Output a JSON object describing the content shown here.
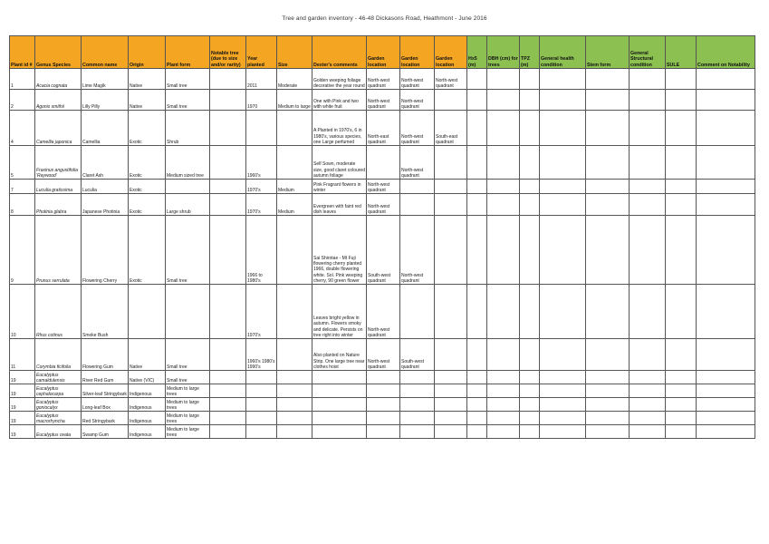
{
  "document": {
    "title": "Tree and garden inventory - 46-48 Dickasons Road, Heathmont - June 2016"
  },
  "table": {
    "headers": [
      "Plant id #",
      "Genus Species",
      "Common name",
      "Origin",
      "Plant form",
      "Notable tree (due to size and/or rarity)",
      "Year planted",
      "Size",
      "Dexter's comments",
      "Garden location",
      "Garden location",
      "Garden location",
      "Hx5 (m)",
      "DBH (cm) for trees",
      "TPZ (m)",
      "General health condition",
      "Stem form",
      "General Structural condition",
      "SULE",
      "Comment on Notability"
    ],
    "header_colors": {
      "orange": "#f4a623",
      "green": "#8cc152"
    },
    "rows": [
      {
        "id": "1",
        "genus": "Acacia cognata",
        "common": "Lime Magik",
        "origin": "Native",
        "form": "Small tree",
        "notable": "",
        "year": "2011",
        "size": "Moderate",
        "comments": "Golden weeping foliage decorative the year round",
        "loc1": "North-west quadrant",
        "loc2": "North-west quadrant",
        "loc3": "North-west quadrant"
      },
      {
        "id": "2",
        "genus": "Agonis smithii",
        "common": "Lilly Pilly",
        "origin": "Native",
        "form": "Small tree",
        "notable": "",
        "year": "1970",
        "size": "Medium to large",
        "comments": "One with Pink and two with white fruit",
        "loc1": "North-west quadrant",
        "loc2": "North-west quadrant",
        "loc3": ""
      },
      {
        "id": "4",
        "genus": "Camellia japonica",
        "common": "Camellia",
        "origin": "Exotic",
        "form": "Shrub",
        "notable": "",
        "year": "",
        "size": "",
        "comments": "A Planted in 1970's, 6 in 1980's, various species, one Large perfumed",
        "loc1": "North-east quadrant",
        "loc2": "North-west quadrant",
        "loc3": "South-east quadrant"
      },
      {
        "id": "5",
        "genus": "Fraxinus angustifolia 'Raywood'",
        "common": "Claret Ash",
        "origin": "Exotic",
        "form": "Medium sized tree",
        "notable": "",
        "year": "1960's",
        "size": "",
        "comments": "Self Sown, moderate size, good claret coloured autumn foliage",
        "loc1": "",
        "loc2": "North-west quadrant",
        "loc3": ""
      },
      {
        "id": "7",
        "genus": "Luculia gratissima",
        "common": "Luculia",
        "origin": "Exotic",
        "form": "",
        "notable": "",
        "year": "1970's",
        "size": "Medium",
        "comments": "Pink Fragrant flowers in winter",
        "loc1": "North-west quadrant",
        "loc2": "",
        "loc3": ""
      },
      {
        "id": "8",
        "genus": "Photinia glabra",
        "common": "Japanese Photinia",
        "origin": "Exotic",
        "form": "Large shrub",
        "notable": "",
        "year": "1970's",
        "size": "Medium",
        "comments": "Evergreen with faint red dish leaves",
        "loc1": "North-west quadrant",
        "loc2": "",
        "loc3": ""
      },
      {
        "id": "9",
        "genus": "Prunus serrulata",
        "common": "Flowering Cherry",
        "origin": "Exotic",
        "form": "Small tree",
        "notable": "",
        "year": "1966 to 1980's",
        "size": "",
        "comments": "Sai Shirotae - Mt Fuji flowering cherry planted 1966, double flowering white. Sol. Pink weeping cherry, 90 green flower",
        "loc1": "South-west quadrant",
        "loc2": "North-west quadrant",
        "loc3": ""
      },
      {
        "id": "10",
        "genus": "Rhus cotinus",
        "common": "Smoke Bush",
        "origin": "",
        "form": "",
        "notable": "",
        "year": "1970's",
        "size": "",
        "comments": "Leaves bright yellow in autumn. Flowers smoky and delicate. Persists on tree right into winter",
        "loc1": "North-west quadrant",
        "loc2": "",
        "loc3": ""
      },
      {
        "id": "11",
        "genus": "Corymbia ficifolia",
        "common": "Flowering Gum",
        "origin": "Native",
        "form": "Small tree",
        "notable": "",
        "year": "1960's 1980's 1990's",
        "size": "",
        "comments": "Also planted on Nature Strip. One large tree near clothes hoist",
        "loc1": "North-west quadrant",
        "loc2": "South-west quadrant",
        "loc3": ""
      },
      {
        "id": "19",
        "genus": "Eucalyptus camaldulensis",
        "common": "River Red Gum",
        "origin": "Native (VIC)",
        "form": "Small tree",
        "notable": "",
        "year": "",
        "size": "",
        "comments": "",
        "loc1": "",
        "loc2": "",
        "loc3": ""
      },
      {
        "id": "19",
        "genus": "Eucalyptus cephalocarpa",
        "common": "Silver-leaf Stringybark",
        "origin": "Indigenous",
        "form": "Medium to large trees",
        "notable": "",
        "year": "",
        "size": "",
        "comments": "",
        "loc1": "",
        "loc2": "",
        "loc3": ""
      },
      {
        "id": "19",
        "genus": "Eucalyptus goniocalyx",
        "common": "Long-leaf Box",
        "origin": "Indigenous",
        "form": "Medium to large trees",
        "notable": "",
        "year": "",
        "size": "",
        "comments": "",
        "loc1": "",
        "loc2": "",
        "loc3": ""
      },
      {
        "id": "19",
        "genus": "Eucalyptus macrorhyncha",
        "common": "Red Stringybark",
        "origin": "Indigenous",
        "form": "Medium to large trees",
        "notable": "",
        "year": "",
        "size": "",
        "comments": "",
        "loc1": "",
        "loc2": "",
        "loc3": ""
      },
      {
        "id": "19",
        "genus": "Eucalyptus ovata",
        "common": "Swamp Gum",
        "origin": "Indigenous",
        "form": "Medium to large trees",
        "notable": "",
        "year": "",
        "size": "",
        "comments": "",
        "loc1": "",
        "loc2": "",
        "loc3": ""
      }
    ]
  }
}
